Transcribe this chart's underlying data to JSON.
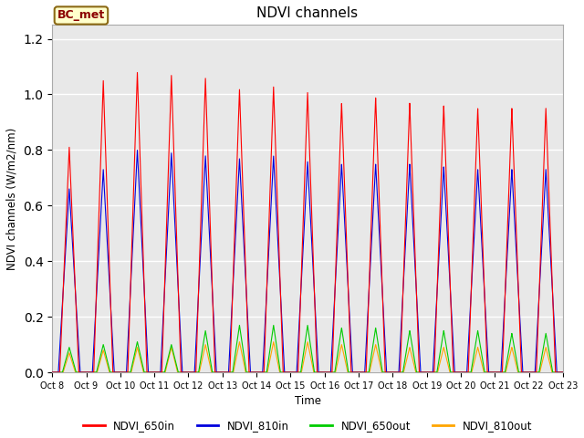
{
  "title": "NDVI channels",
  "ylabel": "NDVI channels (W/m2/nm)",
  "xlabel": "Time",
  "annotation_text": "BC_met",
  "annotation_color": "#8B0000",
  "annotation_bg": "#FFFFCC",
  "annotation_border": "#8B6914",
  "ylim": [
    0,
    1.25
  ],
  "background_color": "#E8E8E8",
  "grid_color": "#FFFFFF",
  "n_days": 15,
  "peaks_650in": [
    0.81,
    1.05,
    1.08,
    1.07,
    1.06,
    1.02,
    1.03,
    1.01,
    0.97,
    0.99,
    0.97,
    0.96,
    0.95,
    0.95,
    0.95
  ],
  "peaks_810in": [
    0.66,
    0.73,
    0.8,
    0.79,
    0.78,
    0.77,
    0.78,
    0.76,
    0.75,
    0.75,
    0.75,
    0.74,
    0.73,
    0.73,
    0.73
  ],
  "peaks_650out": [
    0.09,
    0.1,
    0.11,
    0.1,
    0.15,
    0.17,
    0.17,
    0.17,
    0.16,
    0.16,
    0.15,
    0.15,
    0.15,
    0.14,
    0.14
  ],
  "peaks_810out": [
    0.07,
    0.08,
    0.09,
    0.09,
    0.1,
    0.11,
    0.11,
    0.11,
    0.1,
    0.1,
    0.09,
    0.09,
    0.09,
    0.09,
    0.09
  ],
  "colors": {
    "NDVI_650in": "#FF0000",
    "NDVI_810in": "#0000DD",
    "NDVI_650out": "#00CC00",
    "NDVI_810out": "#FFA500"
  },
  "tick_labels": [
    "Oct 8",
    "Oct 9",
    "Oct 10",
    "Oct 11",
    "Oct 12",
    "Oct 13",
    "Oct 14",
    "Oct 15",
    "Oct 16",
    "Oct 17",
    "Oct 18",
    "Oct 19",
    "Oct 20",
    "Oct 21",
    "Oct 22",
    "Oct 23"
  ],
  "legend_labels": [
    "NDVI_650in",
    "NDVI_810in",
    "NDVI_650out",
    "NDVI_810out"
  ]
}
